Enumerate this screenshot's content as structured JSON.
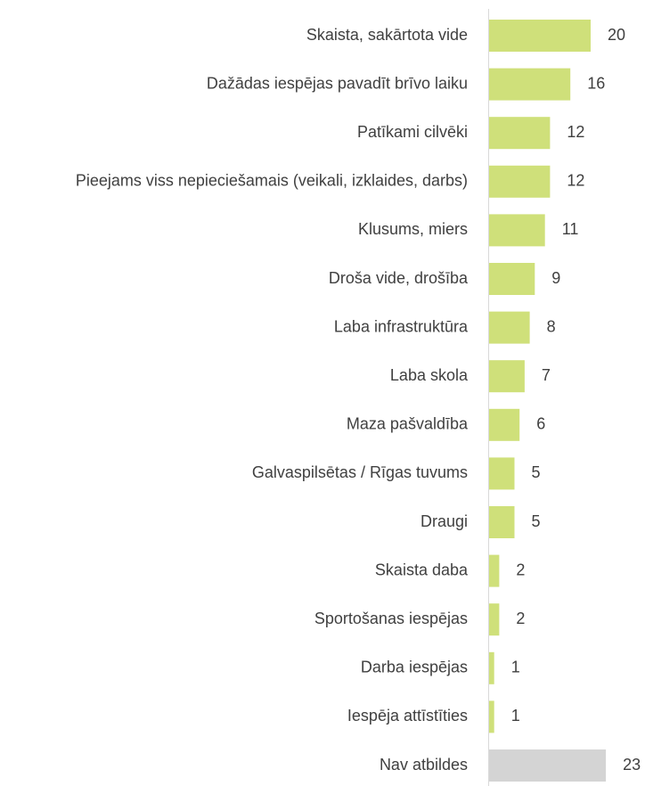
{
  "chart_data": {
    "type": "bar",
    "orientation": "horizontal",
    "categories": [
      "Skaista, sakārtota vide",
      "Dažādas iespējas pavadīt brīvo laiku",
      "Patīkami cilvēki",
      "Pieejams viss nepieciešamais (veikali, izklaides, darbs)",
      "Klusums, miers",
      "Droša vide, drošība",
      "Laba infrastruktūra",
      "Laba skola",
      "Maza pašvaldība",
      "Galvaspilsētas / Rīgas tuvums",
      "Draugi",
      "Skaista daba",
      "Sportošanas iespējas",
      "Darba iespējas",
      "Iespēja attīstīties",
      "Nav atbildes"
    ],
    "values": [
      20,
      16,
      12,
      12,
      11,
      9,
      8,
      7,
      6,
      5,
      5,
      2,
      2,
      1,
      1,
      23
    ],
    "colors": [
      "#cfe07a",
      "#cfe07a",
      "#cfe07a",
      "#cfe07a",
      "#cfe07a",
      "#cfe07a",
      "#cfe07a",
      "#cfe07a",
      "#cfe07a",
      "#cfe07a",
      "#cfe07a",
      "#cfe07a",
      "#cfe07a",
      "#cfe07a",
      "#cfe07a",
      "#d4d4d4"
    ]
  }
}
